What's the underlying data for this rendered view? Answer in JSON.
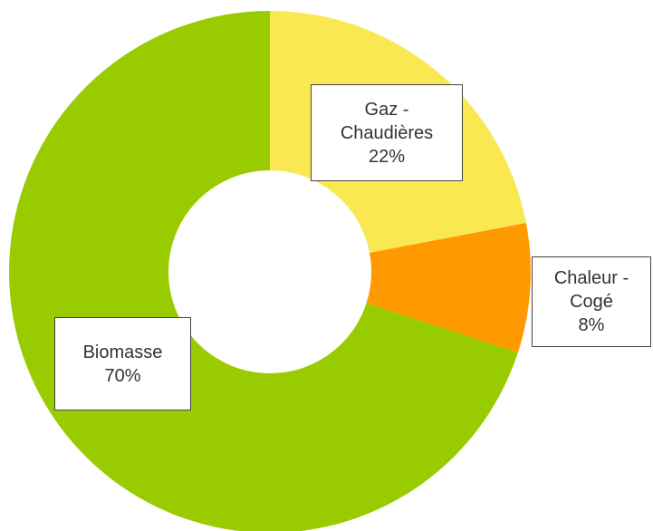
{
  "chart_data": {
    "type": "donut",
    "categories": [
      "Gaz -\nChaudières",
      "Chaleur -\nCogé",
      "Biomasse"
    ],
    "values": [
      22,
      8,
      70
    ],
    "value_labels": [
      "22%",
      "8%",
      "70%"
    ],
    "colors": [
      "#f9e852",
      "#ff9900",
      "#99cc00"
    ]
  }
}
